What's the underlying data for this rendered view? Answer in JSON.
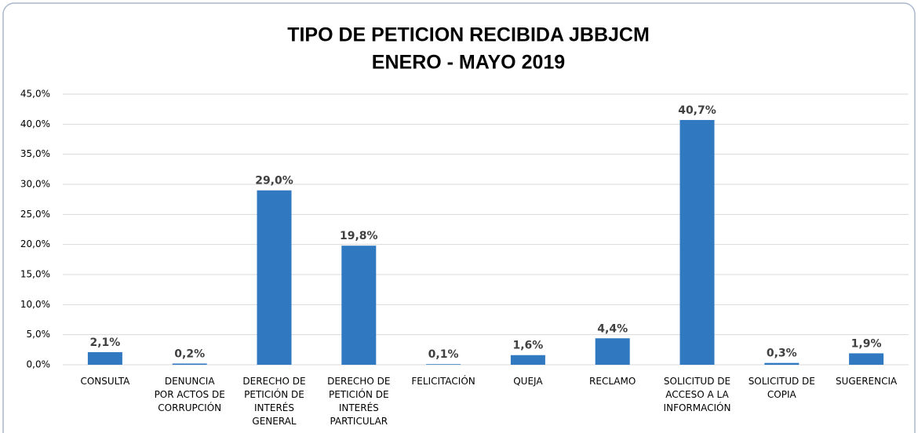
{
  "chart_data": {
    "type": "bar",
    "title": "TIPO DE PETICION RECIBIDA JBBJCM",
    "subtitle": "ENERO - MAYO 2019",
    "categories": [
      [
        "CONSULTA"
      ],
      [
        "DENUNCIA",
        "POR ACTOS DE",
        "CORRUPCIÓN"
      ],
      [
        "DERECHO DE",
        "PETICIÓN DE",
        "INTERÉS",
        "GENERAL"
      ],
      [
        "DERECHO DE",
        "PETICIÓN DE",
        "INTERÉS",
        "PARTICULAR"
      ],
      [
        "FELICITACIÓN"
      ],
      [
        "QUEJA"
      ],
      [
        "RECLAMO"
      ],
      [
        "SOLICITUD DE",
        "ACCESO A LA",
        "INFORMACIÓN"
      ],
      [
        "SOLICITUD DE",
        "COPIA"
      ],
      [
        "SUGERENCIA"
      ]
    ],
    "values": [
      2.1,
      0.2,
      29.0,
      19.8,
      0.1,
      1.6,
      4.4,
      40.7,
      0.3,
      1.9
    ],
    "value_labels": [
      "2,1%",
      "0,2%",
      "29,0%",
      "19,8%",
      "0,1%",
      "1,6%",
      "4,4%",
      "40,7%",
      "0,3%",
      "1,9%"
    ],
    "color": "#3079c1",
    "ylim": [
      0,
      45
    ],
    "yticks": [
      {
        "value": 0,
        "label": "0,0%"
      },
      {
        "value": 5,
        "label": "5,0%"
      },
      {
        "value": 10,
        "label": "10,0%"
      },
      {
        "value": 15,
        "label": "15,0%"
      },
      {
        "value": 20,
        "label": "20,0%"
      },
      {
        "value": 25,
        "label": "25,0%"
      },
      {
        "value": 30,
        "label": "30,0%"
      },
      {
        "value": 35,
        "label": "35,0%"
      },
      {
        "value": 40,
        "label": "40,0%"
      },
      {
        "value": 45,
        "label": "45,0%"
      }
    ],
    "grid": true
  }
}
